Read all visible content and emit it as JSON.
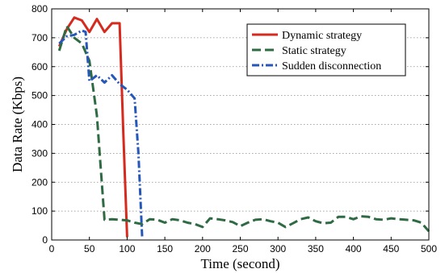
{
  "chart_data": {
    "type": "line",
    "xlabel": "Time (second)",
    "ylabel": "Data Rate (Kbps)",
    "xlim": [
      0,
      500
    ],
    "ylim": [
      0,
      800
    ],
    "xticks": [
      0,
      50,
      100,
      150,
      200,
      250,
      300,
      350,
      400,
      450,
      500
    ],
    "yticks": [
      0,
      100,
      200,
      300,
      400,
      500,
      600,
      700,
      800
    ],
    "grid": "y-dotted",
    "legend_position": "top-right",
    "series": [
      {
        "name": "Dynamic strategy",
        "color": "#d62a1f",
        "style": "solid",
        "x": [
          10,
          20,
          30,
          40,
          50,
          60,
          70,
          80,
          90,
          95,
          100
        ],
        "y": [
          670,
          730,
          770,
          760,
          720,
          765,
          720,
          750,
          750,
          370,
          10
        ]
      },
      {
        "name": "Static strategy",
        "color": "#2e6b43",
        "style": "dashed",
        "x": [
          10,
          20,
          30,
          40,
          50,
          60,
          70,
          80,
          90,
          100,
          110,
          120,
          130,
          140,
          150,
          160,
          170,
          180,
          190,
          200,
          210,
          220,
          230,
          240,
          250,
          260,
          270,
          280,
          290,
          300,
          310,
          320,
          330,
          340,
          350,
          360,
          370,
          380,
          390,
          400,
          410,
          420,
          430,
          440,
          450,
          460,
          470,
          480,
          490,
          500
        ],
        "y": [
          655,
          740,
          700,
          680,
          620,
          430,
          70,
          72,
          70,
          68,
          60,
          55,
          72,
          70,
          60,
          72,
          68,
          60,
          55,
          45,
          75,
          72,
          68,
          62,
          48,
          60,
          70,
          72,
          65,
          60,
          45,
          58,
          72,
          78,
          65,
          58,
          60,
          80,
          80,
          72,
          82,
          80,
          72,
          70,
          75,
          72,
          70,
          68,
          60,
          30
        ]
      },
      {
        "name": "Sudden disconnection",
        "color": "#2457b8",
        "style": "dashdot",
        "x": [
          10,
          20,
          30,
          40,
          45,
          50,
          60,
          70,
          80,
          90,
          100,
          110,
          115,
          120
        ],
        "y": [
          680,
          705,
          710,
          725,
          720,
          550,
          570,
          545,
          570,
          540,
          520,
          490,
          300,
          5
        ]
      }
    ]
  }
}
